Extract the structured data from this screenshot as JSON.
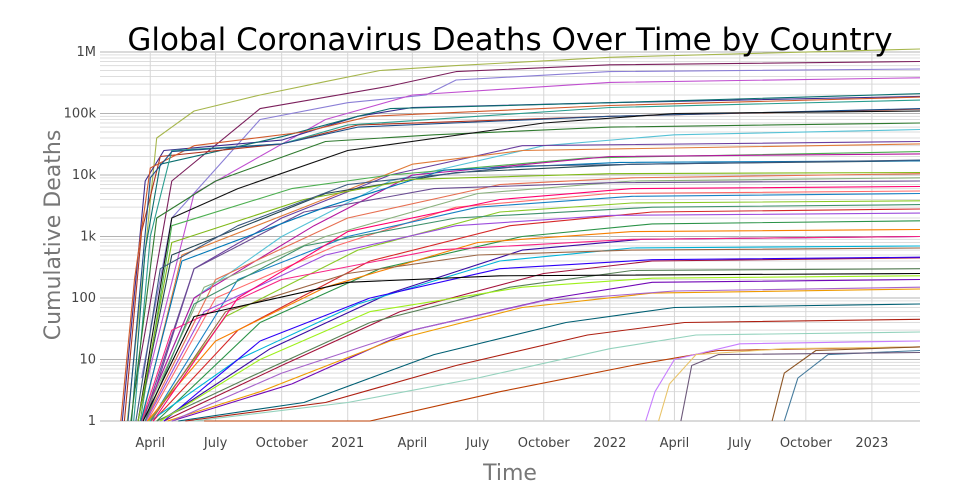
{
  "chart_data": {
    "type": "line",
    "title": "Global Coronavirus Deaths Over Time by Country",
    "xlabel": "Time",
    "ylabel": "Cumulative Deaths",
    "yscale": "log",
    "ylim": [
      1,
      1000000
    ],
    "xlim": [
      "2020-01-22",
      "2023-03-09"
    ],
    "grid": true,
    "legend": "none",
    "x_ticks": [
      {
        "date": "2020-04-01",
        "label": "April"
      },
      {
        "date": "2020-07-01",
        "label": "July"
      },
      {
        "date": "2020-10-01",
        "label": "October"
      },
      {
        "date": "2021-01-01",
        "label": "2021"
      },
      {
        "date": "2021-04-01",
        "label": "April"
      },
      {
        "date": "2021-07-01",
        "label": "July"
      },
      {
        "date": "2021-10-01",
        "label": "October"
      },
      {
        "date": "2022-01-01",
        "label": "2022"
      },
      {
        "date": "2022-04-01",
        "label": "April"
      },
      {
        "date": "2022-07-01",
        "label": "July"
      },
      {
        "date": "2022-10-01",
        "label": "October"
      },
      {
        "date": "2023-01-01",
        "label": "2023"
      }
    ],
    "y_ticks": [
      {
        "value": 1,
        "label": "1"
      },
      {
        "value": 10,
        "label": "10"
      },
      {
        "value": 100,
        "label": "100"
      },
      {
        "value": 1000,
        "label": "1k"
      },
      {
        "value": 10000,
        "label": "10k"
      },
      {
        "value": 100000,
        "label": "100k"
      },
      {
        "value": 1000000,
        "label": "1M"
      }
    ],
    "series": [
      {
        "color": "#a6b64c",
        "x": [
          "2020-02-29",
          "2020-03-20",
          "2020-04-10",
          "2020-06-01",
          "2020-09-01",
          "2020-12-01",
          "2021-02-15",
          "2021-06-01",
          "2022-01-01",
          "2023-03-09"
        ],
        "y": [
          1,
          150,
          40000,
          110000,
          200000,
          330000,
          500000,
          600000,
          820000,
          1120000
        ]
      },
      {
        "color": "#8b7fd6",
        "x": [
          "2020-03-20",
          "2020-05-01",
          "2020-09-01",
          "2021-01-01",
          "2021-04-20",
          "2021-06-01",
          "2022-01-01",
          "2023-03-09"
        ],
        "y": [
          5,
          2000,
          80000,
          150000,
          200000,
          350000,
          480000,
          530000
        ]
      },
      {
        "color": "#7b1f5c",
        "x": [
          "2020-03-10",
          "2020-05-01",
          "2020-09-01",
          "2021-03-01",
          "2021-06-01",
          "2022-01-01",
          "2023-03-09"
        ],
        "y": [
          3,
          8000,
          120000,
          280000,
          480000,
          620000,
          700000
        ]
      },
      {
        "color": "#c04fd0",
        "x": [
          "2020-03-20",
          "2020-06-01",
          "2020-12-01",
          "2021-04-01",
          "2022-01-01",
          "2023-03-09"
        ],
        "y": [
          2,
          5000,
          80000,
          200000,
          320000,
          380000
        ]
      },
      {
        "color": "#3b2a8c",
        "x": [
          "2020-02-22",
          "2020-03-25",
          "2020-04-20",
          "2020-10-01",
          "2021-01-15",
          "2021-04-01",
          "2022-01-01",
          "2023-03-09"
        ],
        "y": [
          1,
          8000,
          25000,
          37000,
          90000,
          125000,
          150000,
          190000
        ]
      },
      {
        "color": "#0b6f6f",
        "x": [
          "2020-03-06",
          "2020-03-25",
          "2020-04-15",
          "2020-10-01",
          "2021-01-15",
          "2021-03-01",
          "2022-01-01",
          "2023-03-09"
        ],
        "y": [
          1,
          600,
          15000,
          42000,
          90000,
          120000,
          150000,
          210000
        ]
      },
      {
        "color": "#b0341f",
        "x": [
          "2020-02-25",
          "2020-03-20",
          "2020-04-15",
          "2020-10-01",
          "2021-01-15",
          "2022-01-01",
          "2023-03-09"
        ],
        "y": [
          1,
          1200,
          20000,
          32000,
          65000,
          90000,
          118000
        ]
      },
      {
        "color": "#d15a2b",
        "x": [
          "2020-02-20",
          "2020-03-10",
          "2020-04-01",
          "2020-06-01",
          "2020-11-01",
          "2021-02-01",
          "2022-01-01",
          "2023-03-09"
        ],
        "y": [
          1,
          200,
          13000,
          30000,
          50000,
          90000,
          135000,
          185000
        ]
      },
      {
        "color": "#2a9d8f",
        "x": [
          "2020-03-09",
          "2020-04-01",
          "2020-05-01",
          "2020-10-01",
          "2021-01-01",
          "2022-01-01",
          "2023-03-09"
        ],
        "y": [
          1,
          1000,
          25000,
          32000,
          65000,
          125000,
          165000
        ]
      },
      {
        "color": "#1d4e89",
        "x": [
          "2020-03-01",
          "2020-04-01",
          "2020-05-01",
          "2020-10-01",
          "2021-01-15",
          "2022-01-01",
          "2023-03-09"
        ],
        "y": [
          1,
          9000,
          24000,
          32000,
          60000,
          90000,
          120000
        ]
      },
      {
        "color": "#2f7a2f",
        "x": [
          "2020-03-05",
          "2020-04-10",
          "2020-07-01",
          "2020-12-01",
          "2021-05-01",
          "2022-01-01",
          "2023-03-09"
        ],
        "y": [
          1,
          2000,
          8000,
          35000,
          45000,
          60000,
          70000
        ]
      },
      {
        "color": "#111111",
        "x": [
          "2020-03-15",
          "2020-05-01",
          "2020-08-01",
          "2021-01-01",
          "2021-10-01",
          "2022-04-01",
          "2023-03-09"
        ],
        "y": [
          1,
          2000,
          6000,
          25000,
          70000,
          100000,
          110000
        ]
      },
      {
        "color": "#56c2d6",
        "x": [
          "2020-03-20",
          "2020-06-01",
          "2020-10-01",
          "2021-03-01",
          "2021-10-01",
          "2022-04-01",
          "2023-03-09"
        ],
        "y": [
          1,
          100,
          1000,
          8000,
          30000,
          45000,
          55000
        ]
      },
      {
        "color": "#6b3fa0",
        "x": [
          "2020-03-25",
          "2020-06-01",
          "2020-10-01",
          "2021-03-01",
          "2021-09-01",
          "2023-03-09"
        ],
        "y": [
          1,
          300,
          2000,
          10000,
          30000,
          35000
        ]
      },
      {
        "color": "#e07b39",
        "x": [
          "2020-03-20",
          "2020-05-15",
          "2020-11-01",
          "2021-04-01",
          "2021-09-01",
          "2023-03-09"
        ],
        "y": [
          1,
          500,
          3000,
          15000,
          25000,
          32000
        ]
      },
      {
        "color": "#4caf50",
        "x": [
          "2020-03-18",
          "2020-05-01",
          "2020-10-15",
          "2021-03-01",
          "2021-12-01",
          "2023-03-09"
        ],
        "y": [
          1,
          1500,
          6000,
          10000,
          19000,
          24000
        ]
      },
      {
        "color": "#b5179e",
        "x": [
          "2020-03-20",
          "2020-06-01",
          "2020-11-15",
          "2021-04-01",
          "2022-01-01",
          "2023-03-09"
        ],
        "y": [
          1,
          100,
          1500,
          10000,
          20000,
          22000
        ]
      },
      {
        "color": "#264653",
        "x": [
          "2020-03-15",
          "2020-05-01",
          "2020-12-01",
          "2021-06-01",
          "2022-02-01",
          "2023-03-09"
        ],
        "y": [
          1,
          500,
          5000,
          11000,
          15000,
          17000
        ]
      },
      {
        "color": "#e76f51",
        "x": [
          "2020-03-25",
          "2020-07-01",
          "2021-01-01",
          "2021-08-01",
          "2022-02-01",
          "2023-03-09"
        ],
        "y": [
          1,
          200,
          2000,
          7000,
          9000,
          10500
        ]
      },
      {
        "color": "#8ab17d",
        "x": [
          "2020-03-20",
          "2020-06-15",
          "2020-12-01",
          "2021-07-01",
          "2022-02-01",
          "2023-03-09"
        ],
        "y": [
          1,
          150,
          1000,
          5000,
          8000,
          9000
        ]
      },
      {
        "color": "#6a4c93",
        "x": [
          "2020-03-22",
          "2020-06-01",
          "2020-11-01",
          "2021-05-01",
          "2022-01-01",
          "2023-03-09"
        ],
        "y": [
          1,
          300,
          2500,
          6000,
          7500,
          8000
        ]
      },
      {
        "color": "#ff6b6b",
        "x": [
          "2020-03-28",
          "2020-07-01",
          "2020-12-15",
          "2021-06-01",
          "2022-01-01",
          "2023-03-09"
        ],
        "y": [
          1,
          100,
          700,
          3000,
          5000,
          5500
        ]
      },
      {
        "color": "#1982c4",
        "x": [
          "2020-04-01",
          "2020-08-01",
          "2021-01-01",
          "2021-07-01",
          "2022-02-01",
          "2023-03-09"
        ],
        "y": [
          1,
          200,
          1000,
          3000,
          4500,
          5000
        ]
      },
      {
        "color": "#8ac926",
        "x": [
          "2020-03-30",
          "2020-07-15",
          "2021-01-15",
          "2021-08-01",
          "2022-02-01",
          "2023-03-09"
        ],
        "y": [
          1,
          50,
          600,
          2500,
          3500,
          3800
        ]
      },
      {
        "color": "#d62828",
        "x": [
          "2020-04-05",
          "2020-08-01",
          "2021-02-01",
          "2021-08-15",
          "2022-03-01",
          "2023-03-09"
        ],
        "y": [
          1,
          30,
          400,
          1500,
          2500,
          2800
        ]
      },
      {
        "color": "#9d4edd",
        "x": [
          "2020-03-26",
          "2020-06-15",
          "2020-12-01",
          "2021-06-01",
          "2022-01-01",
          "2023-03-09"
        ],
        "y": [
          1,
          60,
          500,
          1500,
          2200,
          2400
        ]
      },
      {
        "color": "#2b9348",
        "x": [
          "2020-04-10",
          "2020-09-01",
          "2021-02-15",
          "2021-09-01",
          "2022-03-01",
          "2023-03-09"
        ],
        "y": [
          1,
          40,
          300,
          1000,
          1600,
          1800
        ]
      },
      {
        "color": "#f77f00",
        "x": [
          "2020-03-28",
          "2020-07-01",
          "2020-12-01",
          "2021-07-01",
          "2022-02-01",
          "2023-03-09"
        ],
        "y": [
          1,
          20,
          150,
          800,
          1200,
          1300
        ]
      },
      {
        "color": "#3a0ca3",
        "x": [
          "2020-04-15",
          "2020-09-15",
          "2021-03-01",
          "2021-09-01",
          "2022-02-15",
          "2023-03-09"
        ],
        "y": [
          1,
          15,
          120,
          600,
          900,
          1000
        ]
      },
      {
        "color": "#00b4d8",
        "x": [
          "2020-04-01",
          "2020-08-01",
          "2021-01-15",
          "2021-08-01",
          "2022-02-01",
          "2023-03-09"
        ],
        "y": [
          1,
          10,
          80,
          400,
          650,
          700
        ]
      },
      {
        "color": "#a4133c",
        "x": [
          "2020-04-20",
          "2020-10-01",
          "2021-03-15",
          "2021-10-01",
          "2022-03-01",
          "2023-03-09"
        ],
        "y": [
          1,
          8,
          60,
          250,
          400,
          450
        ]
      },
      {
        "color": "#588157",
        "x": [
          "2020-04-10",
          "2020-08-15",
          "2021-02-01",
          "2021-08-15",
          "2022-02-01",
          "2023-03-09"
        ],
        "y": [
          1,
          5,
          40,
          150,
          280,
          300
        ]
      },
      {
        "color": "#7209b7",
        "x": [
          "2020-05-01",
          "2020-10-15",
          "2021-04-01",
          "2021-10-15",
          "2022-03-01",
          "2023-03-09"
        ],
        "y": [
          1,
          4,
          30,
          100,
          180,
          200
        ]
      },
      {
        "color": "#ee9b00",
        "x": [
          "2020-04-25",
          "2020-09-01",
          "2021-03-01",
          "2021-09-01",
          "2022-03-01",
          "2023-03-09"
        ],
        "y": [
          1,
          3,
          20,
          70,
          120,
          140
        ]
      },
      {
        "color": "#005f73",
        "x": [
          "2020-05-10",
          "2020-11-01",
          "2021-05-01",
          "2021-11-01",
          "2022-04-01",
          "2023-03-09"
        ],
        "y": [
          1,
          2,
          12,
          40,
          70,
          80
        ]
      },
      {
        "color": "#ae2012",
        "x": [
          "2020-05-20",
          "2020-12-01",
          "2021-06-01",
          "2021-12-01",
          "2022-04-15",
          "2023-03-09"
        ],
        "y": [
          1,
          2,
          8,
          25,
          40,
          45
        ]
      },
      {
        "color": "#94d2bd",
        "x": [
          "2020-06-01",
          "2021-01-01",
          "2021-07-01",
          "2022-01-01",
          "2022-05-01",
          "2023-03-09"
        ],
        "y": [
          1,
          2,
          5,
          15,
          25,
          28
        ]
      },
      {
        "color": "#bb3e03",
        "x": [
          "2020-06-15",
          "2021-02-01",
          "2021-08-01",
          "2022-02-01",
          "2022-06-01",
          "2023-03-09"
        ],
        "y": [
          1,
          1,
          3,
          8,
          14,
          16
        ]
      },
      {
        "color": "#c77dff",
        "x": [
          "2022-02-20",
          "2022-03-05",
          "2022-04-01",
          "2022-07-01",
          "2023-03-09"
        ],
        "y": [
          1,
          3,
          10,
          18,
          20
        ]
      },
      {
        "color": "#e9c46a",
        "x": [
          "2022-03-10",
          "2022-03-25",
          "2022-05-01",
          "2022-09-01",
          "2023-03-09"
        ],
        "y": [
          1,
          4,
          12,
          15,
          16
        ]
      },
      {
        "color": "#8d5524",
        "x": [
          "2022-08-15",
          "2022-09-01",
          "2022-10-15",
          "2023-03-09"
        ],
        "y": [
          1,
          6,
          14,
          16
        ]
      },
      {
        "color": "#457b9d",
        "x": [
          "2022-09-01",
          "2022-09-20",
          "2022-11-01",
          "2023-03-09"
        ],
        "y": [
          1,
          5,
          12,
          14
        ]
      },
      {
        "color": "#6d597a",
        "x": [
          "2022-04-10",
          "2022-04-25",
          "2022-06-01",
          "2023-03-09"
        ],
        "y": [
          1,
          8,
          12,
          13
        ]
      },
      {
        "color": "#f72585",
        "x": [
          "2020-03-20",
          "2020-05-01",
          "2020-10-01",
          "2021-05-01",
          "2022-02-01",
          "2023-03-09"
        ],
        "y": [
          1,
          30,
          200,
          600,
          900,
          1000
        ]
      },
      {
        "color": "#40916c",
        "x": [
          "2020-03-25",
          "2020-06-01",
          "2020-11-01",
          "2021-06-01",
          "2022-03-01",
          "2023-03-09"
        ],
        "y": [
          1,
          80,
          700,
          2000,
          3000,
          3300
        ]
      },
      {
        "color": "#0077b6",
        "x": [
          "2020-03-19",
          "2020-05-15",
          "2020-12-01",
          "2021-05-15",
          "2022-01-15",
          "2023-03-09"
        ],
        "y": [
          1,
          400,
          3000,
          12000,
          16000,
          17000
        ]
      },
      {
        "color": "#9c6644",
        "x": [
          "2020-04-02",
          "2020-07-15",
          "2021-01-01",
          "2021-07-01",
          "2022-02-01",
          "2023-03-09"
        ],
        "y": [
          1,
          60,
          250,
          500,
          600,
          650
        ]
      },
      {
        "color": "#2d00f7",
        "x": [
          "2020-04-20",
          "2020-09-01",
          "2021-02-01",
          "2021-08-01",
          "2022-03-01",
          "2023-03-09"
        ],
        "y": [
          1,
          20,
          100,
          300,
          420,
          460
        ]
      },
      {
        "color": "#80b918",
        "x": [
          "2020-03-15",
          "2020-05-01",
          "2020-11-01",
          "2021-04-01",
          "2022-01-01",
          "2023-03-09"
        ],
        "y": [
          1,
          800,
          4000,
          8500,
          10500,
          11000
        ]
      },
      {
        "color": "#ff006e",
        "x": [
          "2020-04-05",
          "2020-08-01",
          "2021-01-01",
          "2021-08-01",
          "2022-02-01",
          "2023-03-09"
        ],
        "y": [
          1,
          100,
          1200,
          4000,
          6000,
          6500
        ]
      },
      {
        "color": "#3d5a80",
        "x": [
          "2020-03-12",
          "2020-04-15",
          "2020-08-01",
          "2021-01-01",
          "2021-09-01",
          "2023-03-09"
        ],
        "y": [
          1,
          300,
          1500,
          7000,
          14000,
          17500
        ]
      },
      {
        "color": "#9ef01a",
        "x": [
          "2020-04-15",
          "2020-09-01",
          "2021-02-01",
          "2021-09-01",
          "2022-03-01",
          "2023-03-09"
        ],
        "y": [
          1,
          10,
          60,
          150,
          210,
          230
        ]
      },
      {
        "color": "#a663cc",
        "x": [
          "2020-05-01",
          "2020-10-01",
          "2021-04-01",
          "2021-10-01",
          "2022-04-01",
          "2023-03-09"
        ],
        "y": [
          1,
          6,
          30,
          90,
          130,
          150
        ]
      },
      {
        "color": "#000000",
        "x": [
          "2020-03-22",
          "2020-06-01",
          "2021-01-01",
          "2021-08-01",
          "2023-03-09"
        ],
        "y": [
          1,
          50,
          180,
          230,
          250
        ]
      }
    ]
  }
}
